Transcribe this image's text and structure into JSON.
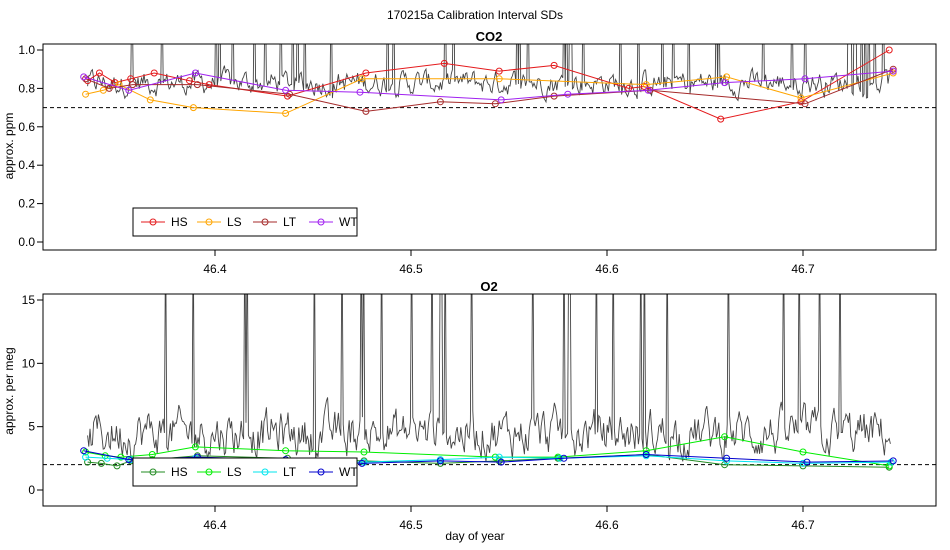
{
  "figure_title": "170215a   Calibration Interval SDs",
  "xlabel": "day of year",
  "chart_data": [
    {
      "type": "line",
      "title": "CO2",
      "xlabel": "day of year",
      "ylabel": "approx. ppm",
      "xlim": [
        46.33,
        46.75
      ],
      "ylim": [
        0.0,
        1.0
      ],
      "xticks": [
        46.4,
        46.5,
        46.6,
        46.7
      ],
      "yticks": [
        0.0,
        0.2,
        0.4,
        0.6,
        0.8,
        1.0
      ],
      "ytick_labels": [
        "0.0",
        "0.2",
        "0.4",
        "0.6",
        "0.8",
        "1.0"
      ],
      "reference_line": 0.7,
      "legend_position": "bottom-left",
      "background_trace": {
        "name": "sample SD",
        "color": "#444444",
        "base": 0.83,
        "amplitude": 0.12
      },
      "series": [
        {
          "name": "HS",
          "color": "#e41a1c",
          "x": [
            46.335,
            46.341,
            46.349,
            46.357,
            46.369,
            46.387,
            46.397,
            46.437,
            46.477,
            46.517,
            46.545,
            46.573,
            46.611,
            46.619,
            46.658,
            46.699,
            46.744
          ],
          "y": [
            0.84,
            0.88,
            0.83,
            0.85,
            0.88,
            0.84,
            0.82,
            0.76,
            0.88,
            0.93,
            0.89,
            0.92,
            0.8,
            0.81,
            0.64,
            0.73,
            1.0
          ]
        },
        {
          "name": "LS",
          "color": "#ffa500",
          "x": [
            46.334,
            46.343,
            46.351,
            46.367,
            46.389,
            46.436,
            46.475,
            46.545,
            46.62,
            46.661,
            46.699,
            46.746
          ],
          "y": [
            0.77,
            0.79,
            0.82,
            0.74,
            0.7,
            0.67,
            0.85,
            0.85,
            0.82,
            0.86,
            0.75,
            0.88
          ]
        },
        {
          "name": "LT",
          "color": "#a52a2a",
          "x": [
            46.334,
            46.346,
            46.358,
            46.391,
            46.438,
            46.477,
            46.515,
            46.543,
            46.573,
            46.622,
            46.701,
            46.746
          ],
          "y": [
            0.85,
            0.8,
            0.82,
            0.82,
            0.77,
            0.68,
            0.73,
            0.72,
            0.76,
            0.79,
            0.72,
            0.9
          ]
        },
        {
          "name": "WT",
          "color": "#a020f0",
          "x": [
            46.333,
            46.356,
            46.39,
            46.436,
            46.474,
            46.546,
            46.58,
            46.621,
            46.66,
            46.701,
            46.746
          ],
          "y": [
            0.86,
            0.79,
            0.88,
            0.79,
            0.78,
            0.74,
            0.77,
            0.79,
            0.83,
            0.85,
            0.89
          ]
        }
      ]
    },
    {
      "type": "line",
      "title": "O2",
      "xlabel": "day of year",
      "ylabel": "approx. per meg",
      "xlim": [
        46.33,
        46.75
      ],
      "ylim": [
        0,
        15
      ],
      "xticks": [
        46.4,
        46.5,
        46.6,
        46.7
      ],
      "yticks": [
        0,
        5,
        10,
        15
      ],
      "ytick_labels": [
        "0",
        "5",
        "10",
        "15"
      ],
      "reference_line": 2.0,
      "legend_position": "bottom-left",
      "background_trace": {
        "name": "sample SD",
        "color": "#444444",
        "base": 4.5,
        "amplitude": 3.5
      },
      "series": [
        {
          "name": "HS",
          "color": "#228b22",
          "x": [
            46.335,
            46.342,
            46.35,
            46.357,
            46.368,
            46.391,
            46.437,
            46.476,
            46.515,
            46.545,
            46.575,
            46.62,
            46.66,
            46.7,
            46.744
          ],
          "y": [
            2.2,
            2.1,
            1.9,
            2.3,
            2.4,
            2.7,
            2.5,
            2.3,
            2.1,
            2.3,
            2.5,
            2.8,
            2.0,
            1.9,
            1.8
          ]
        },
        {
          "name": "LS",
          "color": "#00ee00",
          "x": [
            46.334,
            46.344,
            46.352,
            46.368,
            46.39,
            46.436,
            46.476,
            46.543,
            46.575,
            46.62,
            46.66,
            46.7,
            46.744
          ],
          "y": [
            3.0,
            2.7,
            2.6,
            2.8,
            3.4,
            3.1,
            3.0,
            2.6,
            2.6,
            3.1,
            4.2,
            3.0,
            1.9
          ]
        },
        {
          "name": "LT",
          "color": "#00e5ee",
          "x": [
            46.334,
            46.345,
            46.357,
            46.39,
            46.436,
            46.476,
            46.515,
            46.545,
            46.576,
            46.62,
            46.661,
            46.7,
            46.745
          ],
          "y": [
            2.6,
            2.5,
            2.4,
            2.5,
            2.3,
            2.2,
            2.4,
            2.6,
            2.5,
            2.7,
            2.3,
            2.1,
            2.2
          ]
        },
        {
          "name": "WT",
          "color": "#0000cd",
          "x": [
            46.333,
            46.356,
            46.391,
            46.436,
            46.475,
            46.515,
            46.546,
            46.578,
            46.62,
            46.661,
            46.702,
            46.746
          ],
          "y": [
            3.1,
            2.4,
            2.6,
            2.4,
            2.1,
            2.3,
            2.2,
            2.5,
            2.8,
            2.5,
            2.2,
            2.3
          ]
        }
      ]
    }
  ]
}
